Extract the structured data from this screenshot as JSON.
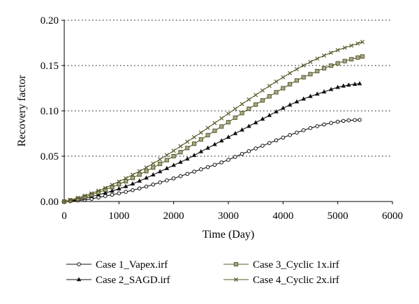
{
  "chart_data": {
    "type": "line",
    "title": "",
    "xlabel": "Time (Day)",
    "ylabel": "Recovery factor",
    "xlim": [
      0,
      6000
    ],
    "ylim": [
      0,
      0.2
    ],
    "x_ticks": [
      "0",
      "1000",
      "2000",
      "3000",
      "4000",
      "5000",
      "6000"
    ],
    "y_ticks": [
      "0.00",
      "0.05",
      "0.10",
      "0.15",
      "0.20"
    ],
    "grid": "horizontal dotted",
    "legend_position": "bottom",
    "series": [
      {
        "name": "Case 1_Vapex.irf",
        "marker": "circle",
        "color": "#111111",
        "points": [
          [
            0,
            0
          ],
          [
            250,
            0.001
          ],
          [
            500,
            0.003
          ],
          [
            750,
            0.006
          ],
          [
            1000,
            0.009
          ],
          [
            1250,
            0.0125
          ],
          [
            1500,
            0.0165
          ],
          [
            1750,
            0.021
          ],
          [
            2000,
            0.0255
          ],
          [
            2250,
            0.0305
          ],
          [
            2500,
            0.0355
          ],
          [
            2750,
            0.0405
          ],
          [
            3000,
            0.046
          ],
          [
            3250,
            0.0525
          ],
          [
            3500,
            0.0585
          ],
          [
            3750,
            0.0645
          ],
          [
            4000,
            0.0705
          ],
          [
            4250,
            0.076
          ],
          [
            4500,
            0.081
          ],
          [
            4750,
            0.085
          ],
          [
            5000,
            0.088
          ],
          [
            5200,
            0.0895
          ],
          [
            5400,
            0.09
          ]
        ]
      },
      {
        "name": "Case 2_SAGD.irf",
        "marker": "triangle",
        "color": "#111111",
        "points": [
          [
            0,
            0
          ],
          [
            250,
            0.002
          ],
          [
            500,
            0.0055
          ],
          [
            750,
            0.0095
          ],
          [
            1000,
            0.014
          ],
          [
            1250,
            0.0195
          ],
          [
            1500,
            0.026
          ],
          [
            1750,
            0.033
          ],
          [
            2000,
            0.04
          ],
          [
            2250,
            0.047
          ],
          [
            2500,
            0.055
          ],
          [
            2750,
            0.063
          ],
          [
            3000,
            0.071
          ],
          [
            3250,
            0.079
          ],
          [
            3500,
            0.087
          ],
          [
            3750,
            0.095
          ],
          [
            4000,
            0.103
          ],
          [
            4250,
            0.11
          ],
          [
            4500,
            0.116
          ],
          [
            4750,
            0.121
          ],
          [
            5000,
            0.126
          ],
          [
            5200,
            0.1285
          ],
          [
            5400,
            0.13
          ]
        ]
      },
      {
        "name": "Case 3_Cyclic 1x.irf",
        "marker": "square",
        "color": "#5a5a2a",
        "points": [
          [
            0,
            0
          ],
          [
            250,
            0.003
          ],
          [
            500,
            0.0075
          ],
          [
            750,
            0.013
          ],
          [
            1000,
            0.019
          ],
          [
            1250,
            0.026
          ],
          [
            1500,
            0.0335
          ],
          [
            1750,
            0.0415
          ],
          [
            2000,
            0.05
          ],
          [
            2250,
            0.059
          ],
          [
            2500,
            0.0685
          ],
          [
            2750,
            0.078
          ],
          [
            3000,
            0.0875
          ],
          [
            3250,
            0.0975
          ],
          [
            3500,
            0.107
          ],
          [
            3750,
            0.116
          ],
          [
            4000,
            0.125
          ],
          [
            4250,
            0.1335
          ],
          [
            4500,
            0.1405
          ],
          [
            4750,
            0.147
          ],
          [
            5000,
            0.1525
          ],
          [
            5250,
            0.157
          ],
          [
            5450,
            0.16
          ]
        ]
      },
      {
        "name": "Case 4_Cyclic 2x.irf",
        "marker": "x",
        "color": "#5a5a2a",
        "points": [
          [
            0,
            0
          ],
          [
            250,
            0.004
          ],
          [
            500,
            0.009
          ],
          [
            750,
            0.015
          ],
          [
            1000,
            0.022
          ],
          [
            1250,
            0.0295
          ],
          [
            1500,
            0.0375
          ],
          [
            1750,
            0.0465
          ],
          [
            2000,
            0.056
          ],
          [
            2250,
            0.066
          ],
          [
            2500,
            0.076
          ],
          [
            2750,
            0.0865
          ],
          [
            3000,
            0.097
          ],
          [
            3250,
            0.1075
          ],
          [
            3500,
            0.1175
          ],
          [
            3750,
            0.1275
          ],
          [
            4000,
            0.137
          ],
          [
            4250,
            0.146
          ],
          [
            4500,
            0.154
          ],
          [
            4750,
            0.161
          ],
          [
            5000,
            0.167
          ],
          [
            5250,
            0.172
          ],
          [
            5450,
            0.176
          ]
        ]
      }
    ]
  }
}
